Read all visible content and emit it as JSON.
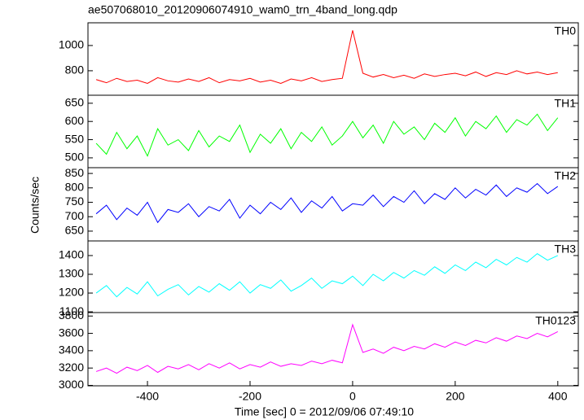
{
  "chart_data": [
    {
      "type": "line",
      "title": "ae507068010_20120906074910_wam0_trn_4band_long.qdp",
      "x": [
        -500,
        -480,
        -460,
        -440,
        -420,
        -400,
        -380,
        -360,
        -340,
        -320,
        -300,
        -280,
        -260,
        -240,
        -220,
        -200,
        -180,
        -160,
        -140,
        -120,
        -100,
        -80,
        -60,
        -40,
        -20,
        0,
        20,
        40,
        60,
        80,
        100,
        120,
        140,
        160,
        180,
        200,
        220,
        240,
        260,
        280,
        300,
        320,
        340,
        360,
        380,
        400
      ],
      "xlim": [
        -516,
        440
      ],
      "series": [
        {
          "name": "TH0",
          "color": "#ff0000",
          "values": [
            730,
            705,
            740,
            715,
            725,
            700,
            745,
            720,
            710,
            735,
            715,
            745,
            705,
            730,
            720,
            740,
            710,
            725,
            700,
            735,
            720,
            745,
            715,
            730,
            740,
            1120,
            780,
            750,
            770,
            745,
            765,
            740,
            775,
            755,
            770,
            780,
            760,
            790,
            755,
            785,
            770,
            800,
            775,
            790,
            770,
            785
          ]
        }
      ],
      "ylim": [
        606,
        1180
      ],
      "yticks": [
        800,
        1000
      ]
    },
    {
      "type": "line",
      "x": [
        -500,
        -480,
        -460,
        -440,
        -420,
        -400,
        -380,
        -360,
        -340,
        -320,
        -300,
        -280,
        -260,
        -240,
        -220,
        -200,
        -180,
        -160,
        -140,
        -120,
        -100,
        -80,
        -60,
        -40,
        -20,
        0,
        20,
        40,
        60,
        80,
        100,
        120,
        140,
        160,
        180,
        200,
        220,
        240,
        260,
        280,
        300,
        320,
        340,
        360,
        380,
        400
      ],
      "xlim": [
        -516,
        440
      ],
      "series": [
        {
          "name": "TH1",
          "color": "#00ff00",
          "values": [
            540,
            510,
            570,
            525,
            560,
            505,
            580,
            535,
            550,
            520,
            575,
            530,
            560,
            545,
            590,
            515,
            565,
            540,
            580,
            525,
            570,
            545,
            585,
            535,
            560,
            600,
            555,
            590,
            540,
            600,
            565,
            585,
            550,
            595,
            570,
            610,
            560,
            600,
            580,
            615,
            570,
            605,
            590,
            620,
            575,
            610
          ]
        }
      ],
      "ylim": [
        473,
        672
      ],
      "yticks": [
        500,
        550,
        600,
        650
      ]
    },
    {
      "type": "line",
      "y_label": "Counts/sec",
      "x": [
        -500,
        -480,
        -460,
        -440,
        -420,
        -400,
        -380,
        -360,
        -340,
        -320,
        -300,
        -280,
        -260,
        -240,
        -220,
        -200,
        -180,
        -160,
        -140,
        -120,
        -100,
        -80,
        -60,
        -40,
        -20,
        0,
        20,
        40,
        60,
        80,
        100,
        120,
        140,
        160,
        180,
        200,
        220,
        240,
        260,
        280,
        300,
        320,
        340,
        360,
        380,
        400
      ],
      "xlim": [
        -516,
        440
      ],
      "series": [
        {
          "name": "TH2",
          "color": "#0000ff",
          "values": [
            710,
            740,
            690,
            730,
            705,
            750,
            680,
            725,
            715,
            745,
            700,
            735,
            720,
            760,
            695,
            740,
            710,
            750,
            725,
            765,
            715,
            755,
            730,
            770,
            720,
            745,
            740,
            775,
            735,
            770,
            750,
            790,
            745,
            780,
            760,
            800,
            765,
            795,
            775,
            810,
            770,
            800,
            785,
            815,
            780,
            805
          ]
        }
      ],
      "ylim": [
        616,
        870
      ],
      "yticks": [
        650,
        700,
        750,
        800,
        850
      ]
    },
    {
      "type": "line",
      "x": [
        -500,
        -480,
        -460,
        -440,
        -420,
        -400,
        -380,
        -360,
        -340,
        -320,
        -300,
        -280,
        -260,
        -240,
        -220,
        -200,
        -180,
        -160,
        -140,
        -120,
        -100,
        -80,
        -60,
        -40,
        -20,
        0,
        20,
        40,
        60,
        80,
        100,
        120,
        140,
        160,
        180,
        200,
        220,
        240,
        260,
        280,
        300,
        320,
        340,
        360,
        380,
        400
      ],
      "xlim": [
        -516,
        440
      ],
      "series": [
        {
          "name": "TH3",
          "color": "#00ffff",
          "values": [
            1200,
            1240,
            1180,
            1230,
            1195,
            1260,
            1185,
            1220,
            1245,
            1190,
            1235,
            1205,
            1250,
            1215,
            1260,
            1200,
            1245,
            1225,
            1270,
            1210,
            1240,
            1280,
            1225,
            1265,
            1250,
            1290,
            1240,
            1300,
            1265,
            1310,
            1280,
            1320,
            1295,
            1340,
            1305,
            1350,
            1320,
            1365,
            1335,
            1380,
            1350,
            1390,
            1365,
            1410,
            1375,
            1400
          ]
        }
      ],
      "ylim": [
        1096,
        1478
      ],
      "yticks": [
        1100,
        1200,
        1300,
        1400
      ]
    },
    {
      "type": "line",
      "x_label": "Time [sec] 0 = 2012/09/06 07:49:10",
      "x": [
        -500,
        -480,
        -460,
        -440,
        -420,
        -400,
        -380,
        -360,
        -340,
        -320,
        -300,
        -280,
        -260,
        -240,
        -220,
        -200,
        -180,
        -160,
        -140,
        -120,
        -100,
        -80,
        -60,
        -40,
        -20,
        0,
        20,
        40,
        60,
        80,
        100,
        120,
        140,
        160,
        180,
        200,
        220,
        240,
        260,
        280,
        300,
        320,
        340,
        360,
        380,
        400
      ],
      "xlim": [
        -516,
        440
      ],
      "xticks": [
        -400,
        -200,
        0,
        200,
        400
      ],
      "series": [
        {
          "name": "TH0123",
          "color": "#ff00ff",
          "values": [
            3160,
            3200,
            3140,
            3210,
            3170,
            3230,
            3150,
            3220,
            3190,
            3240,
            3180,
            3250,
            3200,
            3260,
            3190,
            3240,
            3210,
            3270,
            3220,
            3250,
            3230,
            3280,
            3250,
            3290,
            3260,
            3700,
            3380,
            3420,
            3370,
            3440,
            3400,
            3450,
            3420,
            3480,
            3440,
            3500,
            3460,
            3520,
            3490,
            3550,
            3510,
            3570,
            3540,
            3600,
            3560,
            3620
          ]
        }
      ],
      "ylim": [
        2995,
        3840
      ],
      "yticks": [
        3000,
        3200,
        3400,
        3600,
        3800
      ]
    }
  ]
}
